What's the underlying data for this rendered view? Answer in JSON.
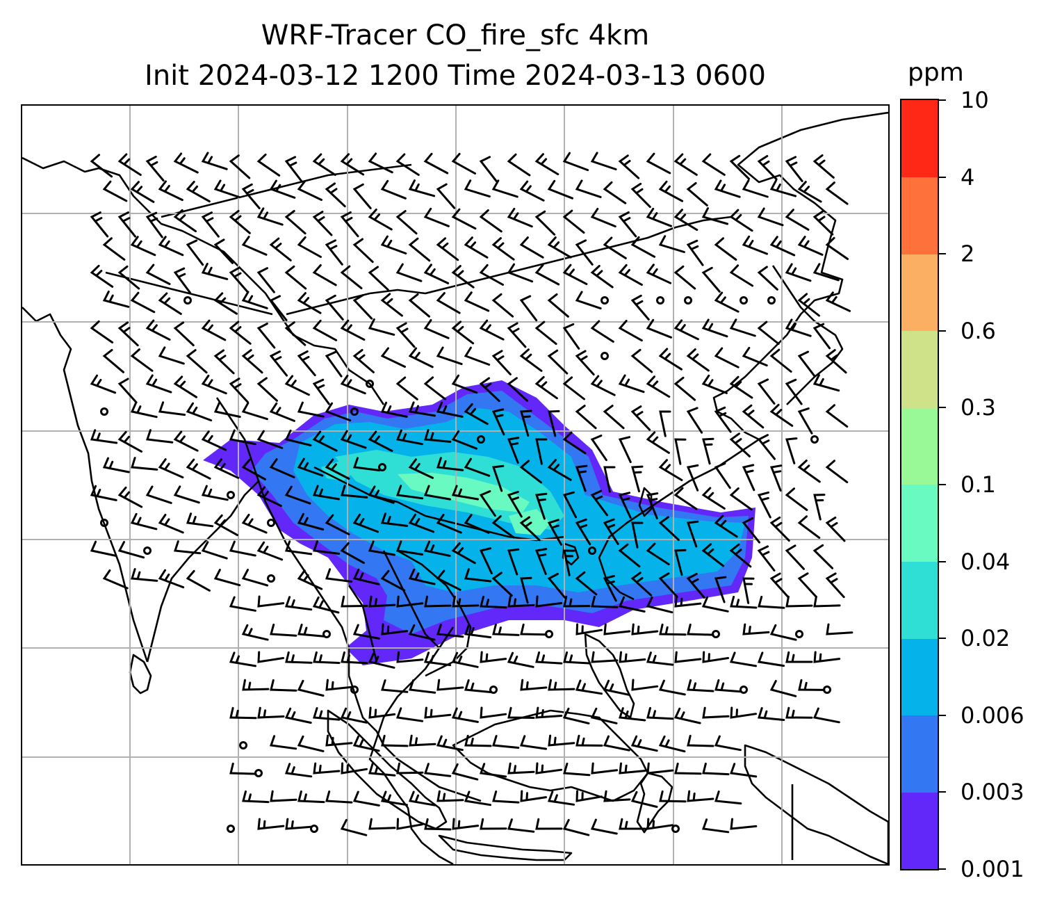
{
  "title": {
    "line1": "WRF-Tracer CO_fire_sfc 4km",
    "line2": "Init 2024-03-12 1200 Time 2024-03-13 0600"
  },
  "colorbar": {
    "unit": "ppm",
    "levels": [
      "0.001",
      "0.003",
      "0.006",
      "0.02",
      "0.04",
      "0.1",
      "0.3",
      "0.6",
      "2",
      "4",
      "10"
    ],
    "colors": [
      "#6228fa",
      "#3377f2",
      "#05b3ea",
      "#2fdfd6",
      "#69fac1",
      "#98f996",
      "#cfe289",
      "#fbaf62",
      "#ff713a",
      "#ff2715"
    ]
  },
  "map": {
    "variable": "CO_fire_sfc",
    "grid": "on",
    "wind_barbs": "on",
    "coastlines": "on",
    "borders": "on"
  }
}
